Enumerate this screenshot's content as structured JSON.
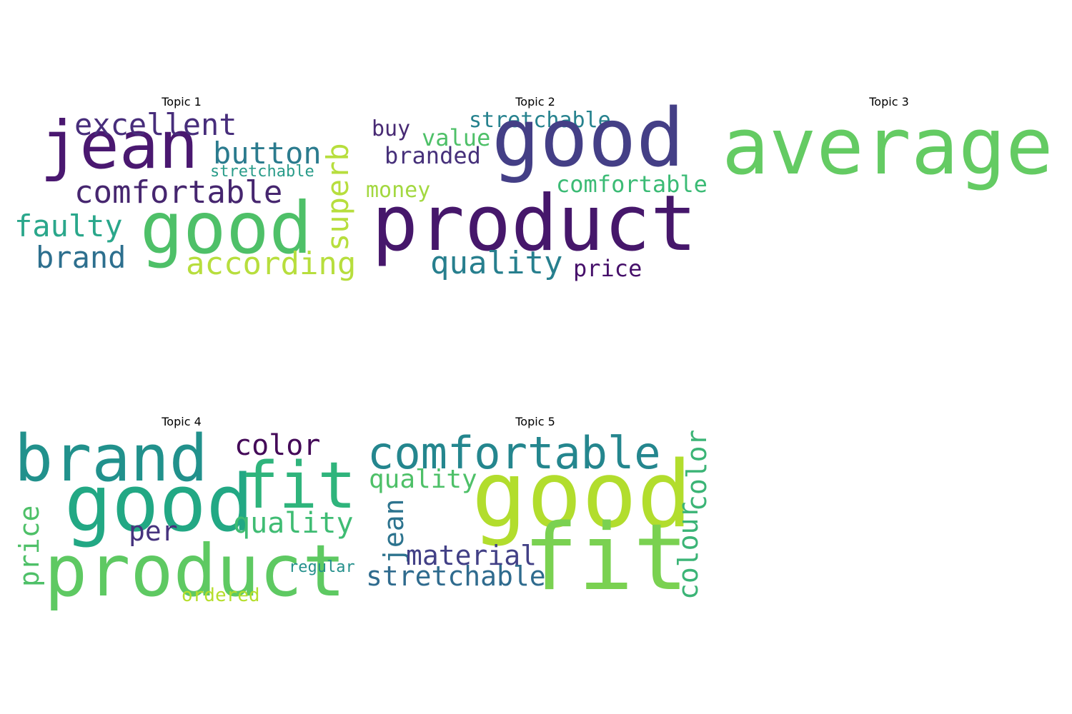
{
  "figure": {
    "topics": [
      {
        "title": "Topic 1",
        "words": [
          {
            "text": "jean",
            "color": "#4a1870"
          },
          {
            "text": "excellent",
            "color": "#472d7b"
          },
          {
            "text": "button",
            "color": "#2b7b8e"
          },
          {
            "text": "stretchable",
            "color": "#2a9c8a"
          },
          {
            "text": "comfortable",
            "color": "#46266f"
          },
          {
            "text": "superb",
            "color": "#b7de3d"
          },
          {
            "text": "faulty",
            "color": "#2aa78b"
          },
          {
            "text": "good",
            "color": "#4ec068"
          },
          {
            "text": "brand",
            "color": "#2d6f8e"
          },
          {
            "text": "according",
            "color": "#b7de3d"
          }
        ]
      },
      {
        "title": "Topic 2",
        "words": [
          {
            "text": "stretchable",
            "color": "#26828e"
          },
          {
            "text": "buy",
            "color": "#482a74"
          },
          {
            "text": "value",
            "color": "#4ec068"
          },
          {
            "text": "good",
            "color": "#443f86"
          },
          {
            "text": "branded",
            "color": "#46307a"
          },
          {
            "text": "money",
            "color": "#a3d840"
          },
          {
            "text": "comfortable",
            "color": "#3bbb75"
          },
          {
            "text": "product",
            "color": "#46176b"
          },
          {
            "text": "quality",
            "color": "#277f8e"
          },
          {
            "text": "price",
            "color": "#46106a"
          }
        ]
      },
      {
        "title": "Topic 3",
        "words": [
          {
            "text": "average",
            "color": "#64cb63"
          }
        ]
      },
      {
        "title": "Topic 4",
        "words": [
          {
            "text": "brand",
            "color": "#21918c"
          },
          {
            "text": "color",
            "color": "#440a58"
          },
          {
            "text": "good",
            "color": "#22a884"
          },
          {
            "text": "fit",
            "color": "#2fb47c"
          },
          {
            "text": "price",
            "color": "#4ec068"
          },
          {
            "text": "per",
            "color": "#46337e"
          },
          {
            "text": "quality",
            "color": "#3fbc73"
          },
          {
            "text": "product",
            "color": "#5ec962"
          },
          {
            "text": "regular",
            "color": "#25908c"
          },
          {
            "text": "ordered",
            "color": "#b5de2b"
          }
        ]
      },
      {
        "title": "Topic 5",
        "words": [
          {
            "text": "comfortable",
            "color": "#24868e"
          },
          {
            "text": "color",
            "color": "#3bb476"
          },
          {
            "text": "quality",
            "color": "#4ec068"
          },
          {
            "text": "jean",
            "color": "#2c738e"
          },
          {
            "text": "good",
            "color": "#b2dd2d"
          },
          {
            "text": "material",
            "color": "#424086"
          },
          {
            "text": "stretchable",
            "color": "#2f6b8e"
          },
          {
            "text": "fit",
            "color": "#7ad151"
          },
          {
            "text": "colour",
            "color": "#3bb476"
          }
        ]
      }
    ]
  }
}
